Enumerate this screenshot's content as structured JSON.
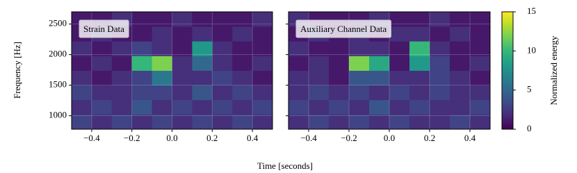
{
  "chart_data": [
    {
      "type": "heatmap",
      "title": "Strain Data",
      "xlabel": "Time [seconds]",
      "ylabel": "Frequency [Hz]",
      "xbins": [
        -0.5,
        -0.4,
        -0.3,
        -0.2,
        -0.1,
        0,
        0.1,
        0.2,
        0.3,
        0.4,
        0.5
      ],
      "ybins": [
        780,
        1020,
        1260,
        1500,
        1740,
        1980,
        2220,
        2460,
        2700
      ],
      "z": [
        [
          3,
          2,
          3,
          2,
          3,
          2,
          3,
          2,
          3,
          2
        ],
        [
          2,
          3,
          2,
          4,
          2,
          3,
          2,
          3,
          2,
          3
        ],
        [
          3,
          2,
          2,
          3,
          3,
          2,
          4,
          2,
          3,
          2
        ],
        [
          2,
          1,
          2,
          3,
          6,
          2,
          2,
          3,
          2,
          1
        ],
        [
          1,
          2,
          1,
          10,
          12,
          2,
          5,
          2,
          1,
          2
        ],
        [
          2,
          1,
          2,
          3,
          2,
          1,
          8,
          2,
          1,
          1
        ],
        [
          1,
          2,
          1,
          1,
          2,
          1,
          2,
          1,
          2,
          1
        ],
        [
          1,
          1,
          2,
          1,
          1,
          2,
          1,
          1,
          1,
          2
        ]
      ],
      "xlim": [
        -0.5,
        0.5
      ],
      "ylim": [
        780,
        2700
      ],
      "xticks": [
        {
          "value": -0.4,
          "label": "−0.4"
        },
        {
          "value": -0.2,
          "label": "−0.2"
        },
        {
          "value": 0,
          "label": "0.0"
        },
        0.2,
        0.4
      ],
      "yticks": [
        1000,
        1500,
        2000,
        2500
      ],
      "grid": true
    },
    {
      "type": "heatmap",
      "title": "Auxiliary Channel Data",
      "xbins": [
        -0.5,
        -0.4,
        -0.3,
        -0.2,
        -0.1,
        0,
        0.1,
        0.2,
        0.3,
        0.4,
        0.5
      ],
      "ybins": [
        780,
        1020,
        1260,
        1500,
        1740,
        1980,
        2220,
        2460,
        2700
      ],
      "z": [
        [
          2,
          3,
          2,
          3,
          2,
          3,
          2,
          2,
          3,
          2
        ],
        [
          3,
          2,
          3,
          2,
          4,
          2,
          3,
          2,
          2,
          3
        ],
        [
          2,
          3,
          2,
          3,
          2,
          3,
          2,
          3,
          2,
          2
        ],
        [
          2,
          2,
          1,
          4,
          4,
          2,
          2,
          3,
          2,
          1
        ],
        [
          1,
          2,
          1,
          12,
          9,
          1,
          8,
          3,
          1,
          2
        ],
        [
          2,
          1,
          1,
          2,
          2,
          1,
          10,
          2,
          1,
          1
        ],
        [
          1,
          2,
          1,
          2,
          1,
          2,
          2,
          1,
          2,
          1
        ],
        [
          2,
          1,
          1,
          1,
          2,
          1,
          1,
          2,
          1,
          1
        ]
      ],
      "xlim": [
        -0.5,
        0.5
      ],
      "ylim": [
        780,
        2700
      ],
      "xticks": [
        {
          "value": -0.4,
          "label": "−0.4"
        },
        {
          "value": -0.2,
          "label": "−0.2"
        },
        {
          "value": 0,
          "label": "0.0"
        },
        0.2,
        0.4
      ],
      "yticks": [
        1000,
        1500,
        2000,
        2500
      ],
      "grid": true,
      "colorbar": {
        "label": "Normalized energy",
        "lim": [
          0,
          15
        ],
        "ticks": [
          0,
          5,
          10,
          15
        ],
        "colormap": [
          "#440154",
          "#482878",
          "#3e4a89",
          "#31688e",
          "#26828e",
          "#1f9e89",
          "#35b779",
          "#6ece58",
          "#b5de2b",
          "#fde725"
        ]
      }
    }
  ]
}
